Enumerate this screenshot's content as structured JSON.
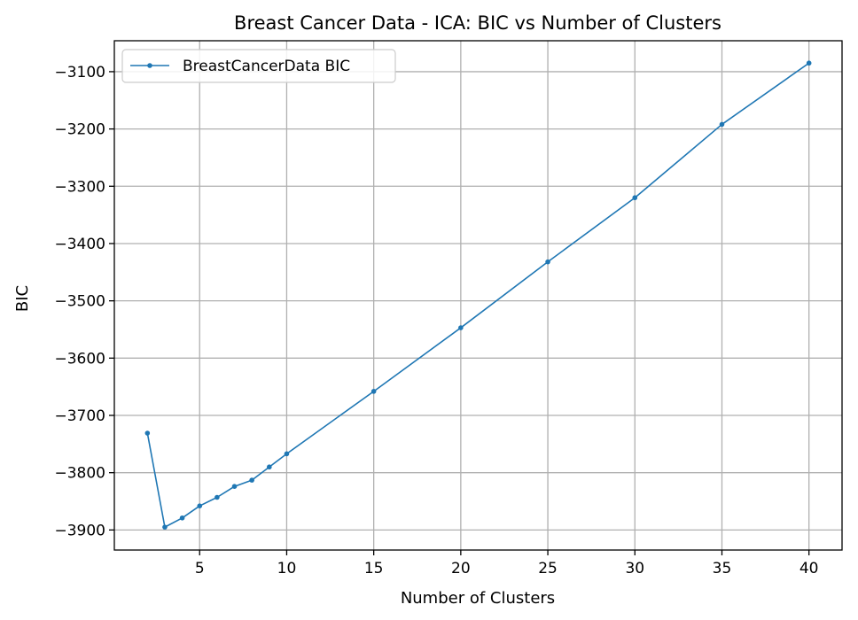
{
  "chart_data": {
    "type": "line",
    "title": "Breast Cancer Data - ICA: BIC vs Number of Clusters",
    "xlabel": "Number of Clusters",
    "ylabel": "BIC",
    "xlim": [
      0.1,
      41.9
    ],
    "ylim": [
      -3935,
      -3046
    ],
    "xticks": [
      5,
      10,
      15,
      20,
      25,
      30,
      35,
      40
    ],
    "yticks": [
      -3900,
      -3800,
      -3700,
      -3600,
      -3500,
      -3400,
      -3300,
      -3200,
      -3100
    ],
    "grid": true,
    "legend_position": "top-left",
    "series": [
      {
        "name": "BreastCancerData BIC",
        "color": "#1f77b4",
        "x": [
          2,
          3,
          4,
          5,
          6,
          7,
          8,
          9,
          10,
          15,
          20,
          25,
          30,
          35,
          40
        ],
        "y": [
          -3731,
          -3895,
          -3879,
          -3858,
          -3843,
          -3824,
          -3813,
          -3790,
          -3767,
          -3658,
          -3547,
          -3432,
          -3320,
          -3192,
          -3085
        ]
      }
    ]
  }
}
